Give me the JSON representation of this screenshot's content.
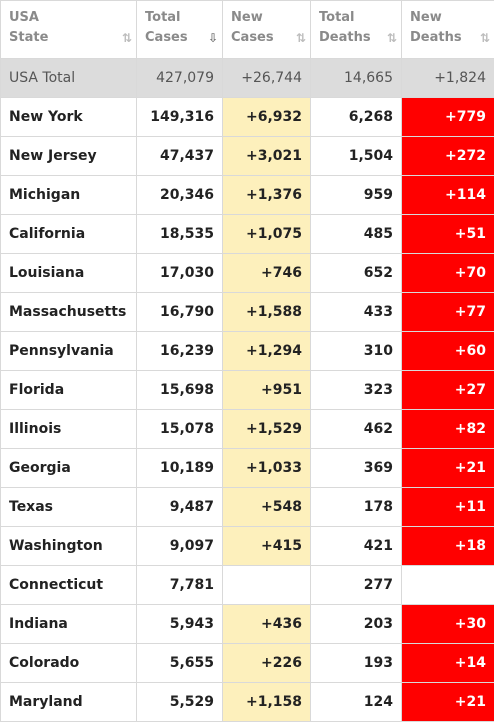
{
  "headers": [
    {
      "line1": "USA",
      "line2": "State",
      "sort": "⇅",
      "active": false
    },
    {
      "line1": "Total",
      "line2": "Cases",
      "sort": "⇩",
      "active": true
    },
    {
      "line1": "New",
      "line2": "Cases",
      "sort": "⇅",
      "active": false
    },
    {
      "line1": "Total",
      "line2": "Deaths",
      "sort": "⇅",
      "active": false
    },
    {
      "line1": "New",
      "line2": "Deaths",
      "sort": "⇅",
      "active": false
    }
  ],
  "total": {
    "state": "USA Total",
    "total_cases": "427,079",
    "new_cases": "+26,744",
    "total_deaths": "14,665",
    "new_deaths": "+1,824"
  },
  "rows": [
    {
      "state": "New York",
      "total_cases": "149,316",
      "new_cases": "+6,932",
      "total_deaths": "6,268",
      "new_deaths": "+779"
    },
    {
      "state": "New Jersey",
      "total_cases": "47,437",
      "new_cases": "+3,021",
      "total_deaths": "1,504",
      "new_deaths": "+272"
    },
    {
      "state": "Michigan",
      "total_cases": "20,346",
      "new_cases": "+1,376",
      "total_deaths": "959",
      "new_deaths": "+114"
    },
    {
      "state": "California",
      "total_cases": "18,535",
      "new_cases": "+1,075",
      "total_deaths": "485",
      "new_deaths": "+51"
    },
    {
      "state": "Louisiana",
      "total_cases": "17,030",
      "new_cases": "+746",
      "total_deaths": "652",
      "new_deaths": "+70"
    },
    {
      "state": "Massachusetts",
      "total_cases": "16,790",
      "new_cases": "+1,588",
      "total_deaths": "433",
      "new_deaths": "+77"
    },
    {
      "state": "Pennsylvania",
      "total_cases": "16,239",
      "new_cases": "+1,294",
      "total_deaths": "310",
      "new_deaths": "+60"
    },
    {
      "state": "Florida",
      "total_cases": "15,698",
      "new_cases": "+951",
      "total_deaths": "323",
      "new_deaths": "+27"
    },
    {
      "state": "Illinois",
      "total_cases": "15,078",
      "new_cases": "+1,529",
      "total_deaths": "462",
      "new_deaths": "+82"
    },
    {
      "state": "Georgia",
      "total_cases": "10,189",
      "new_cases": "+1,033",
      "total_deaths": "369",
      "new_deaths": "+21"
    },
    {
      "state": "Texas",
      "total_cases": "9,487",
      "new_cases": "+548",
      "total_deaths": "178",
      "new_deaths": "+11"
    },
    {
      "state": "Washington",
      "total_cases": "9,097",
      "new_cases": "+415",
      "total_deaths": "421",
      "new_deaths": "+18"
    },
    {
      "state": "Connecticut",
      "total_cases": "7,781",
      "new_cases": "",
      "total_deaths": "277",
      "new_deaths": ""
    },
    {
      "state": "Indiana",
      "total_cases": "5,943",
      "new_cases": "+436",
      "total_deaths": "203",
      "new_deaths": "+30"
    },
    {
      "state": "Colorado",
      "total_cases": "5,655",
      "new_cases": "+226",
      "total_deaths": "193",
      "new_deaths": "+14"
    },
    {
      "state": "Maryland",
      "total_cases": "5,529",
      "new_cases": "+1,158",
      "total_deaths": "124",
      "new_deaths": "+21"
    }
  ],
  "colors": {
    "new_cases_bg": "#fdf0bc",
    "new_deaths_bg": "#ff0000",
    "total_row_bg": "#dcdcdc"
  }
}
